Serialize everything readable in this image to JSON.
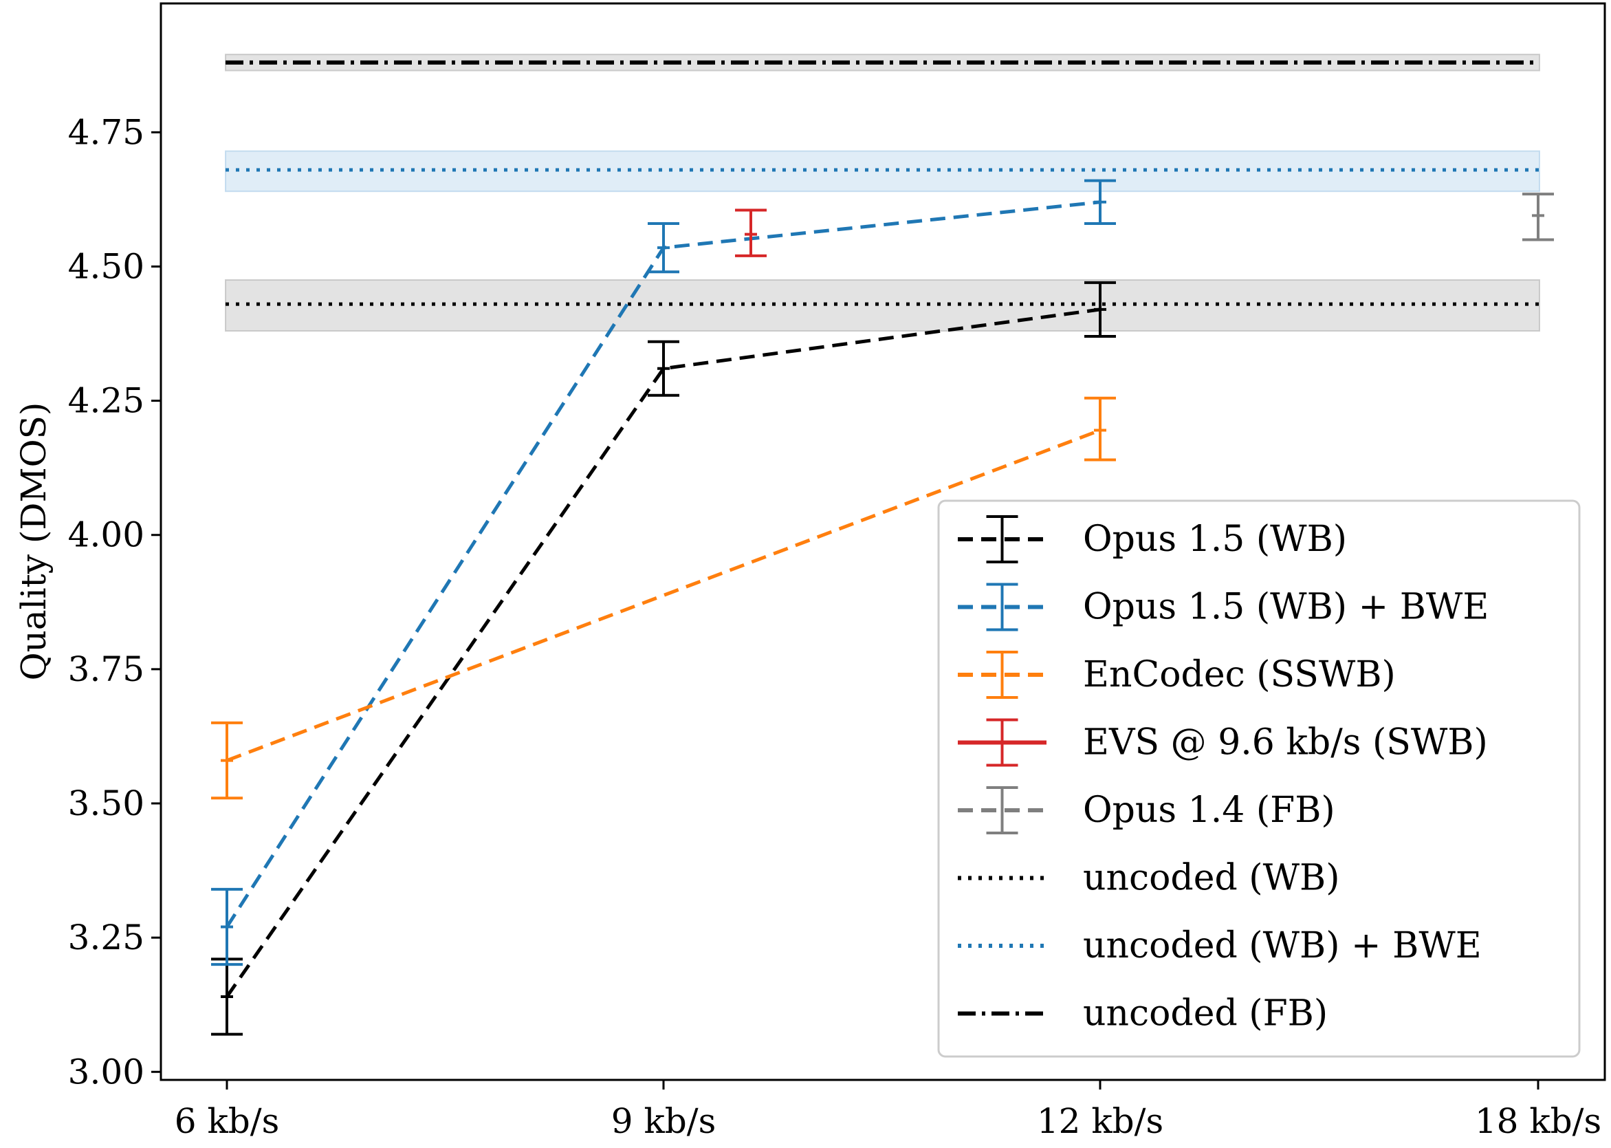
{
  "chart_data": {
    "type": "line",
    "title": "",
    "xlabel": "",
    "ylabel": "Quality (DMOS)",
    "categories": [
      "6 kb/s",
      "9 kb/s",
      "12 kb/s",
      "18 kb/s"
    ],
    "ylim": [
      2.985,
      4.99
    ],
    "yticks": [
      "3.00",
      "3.25",
      "3.50",
      "3.75",
      "4.00",
      "4.25",
      "4.50",
      "4.75"
    ],
    "grid": false,
    "legend_position": "bottom-right",
    "series": [
      {
        "name": "Opus 1.5 (WB)",
        "color": "#000000",
        "dash": "dashed",
        "points": [
          {
            "x": 0,
            "y": 3.14,
            "lo": 3.07,
            "hi": 3.21
          },
          {
            "x": 1,
            "y": 4.31,
            "lo": 4.26,
            "hi": 4.36
          },
          {
            "x": 2,
            "y": 4.42,
            "lo": 4.37,
            "hi": 4.47
          }
        ]
      },
      {
        "name": "Opus 1.5 (WB) + BWE",
        "color": "#1f77b4",
        "dash": "dashed",
        "points": [
          {
            "x": 0,
            "y": 3.27,
            "lo": 3.2,
            "hi": 3.34
          },
          {
            "x": 1,
            "y": 4.535,
            "lo": 4.49,
            "hi": 4.58
          },
          {
            "x": 2,
            "y": 4.62,
            "lo": 4.58,
            "hi": 4.66
          }
        ]
      },
      {
        "name": "EnCodec (SSWB)",
        "color": "#ff7f0e",
        "dash": "dashed",
        "points": [
          {
            "x": 0,
            "y": 3.58,
            "lo": 3.51,
            "hi": 3.65
          },
          {
            "x": 2,
            "y": 4.195,
            "lo": 4.14,
            "hi": 4.255
          }
        ]
      },
      {
        "name": "EVS @ 9.6 kb/s (SWB)",
        "color": "#d62728",
        "dash": "solid",
        "points": [
          {
            "x": 1.2,
            "y": 4.56,
            "lo": 4.52,
            "hi": 4.605
          }
        ]
      },
      {
        "name": "Opus 1.4 (FB)",
        "color": "#7f7f7f",
        "dash": "dashed",
        "points": [
          {
            "x": 3,
            "y": 4.595,
            "lo": 4.55,
            "hi": 4.635
          }
        ]
      }
    ],
    "reference_lines": [
      {
        "name": "uncoded (WB)",
        "color": "#000000",
        "dash": "dotted",
        "y": 4.43,
        "lo": 4.38,
        "hi": 4.475,
        "band_color": "#b0b0b0"
      },
      {
        "name": "uncoded (WB) + BWE",
        "color": "#1f77b4",
        "dash": "dotted",
        "y": 4.68,
        "lo": 4.64,
        "hi": 4.715,
        "band_color": "#a6cbe8"
      },
      {
        "name": "uncoded (FB)",
        "color": "#000000",
        "dash": "dashdot",
        "y": 4.88,
        "lo": 4.865,
        "hi": 4.895,
        "band_color": "#b0b0b0"
      }
    ]
  }
}
